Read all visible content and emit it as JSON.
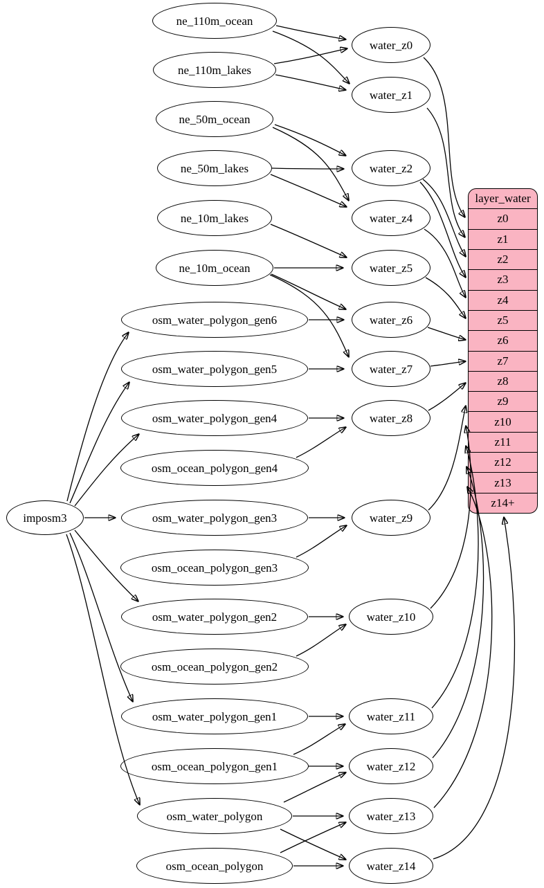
{
  "diagram": {
    "colors": {
      "table_fill": "#fab4c2",
      "node_fill": "#ffffff",
      "stroke": "#000000",
      "background": "#ffffff"
    },
    "table": {
      "title": "layer_water",
      "rows": [
        "z0",
        "z1",
        "z2",
        "z3",
        "z4",
        "z5",
        "z6",
        "z7",
        "z8",
        "z9",
        "z10",
        "z11",
        "z12",
        "z13",
        "z14+"
      ]
    },
    "nodes": [
      {
        "id": "ne_110m_ocean",
        "label": "ne_110m_ocean"
      },
      {
        "id": "ne_110m_lakes",
        "label": "ne_110m_lakes"
      },
      {
        "id": "ne_50m_ocean",
        "label": "ne_50m_ocean"
      },
      {
        "id": "ne_50m_lakes",
        "label": "ne_50m_lakes"
      },
      {
        "id": "ne_10m_lakes",
        "label": "ne_10m_lakes"
      },
      {
        "id": "ne_10m_ocean",
        "label": "ne_10m_ocean"
      },
      {
        "id": "osm_water_polygon_gen6",
        "label": "osm_water_polygon_gen6"
      },
      {
        "id": "osm_water_polygon_gen5",
        "label": "osm_water_polygon_gen5"
      },
      {
        "id": "osm_water_polygon_gen4",
        "label": "osm_water_polygon_gen4"
      },
      {
        "id": "osm_ocean_polygon_gen4",
        "label": "osm_ocean_polygon_gen4"
      },
      {
        "id": "imposm3",
        "label": "imposm3"
      },
      {
        "id": "osm_water_polygon_gen3",
        "label": "osm_water_polygon_gen3"
      },
      {
        "id": "osm_ocean_polygon_gen3",
        "label": "osm_ocean_polygon_gen3"
      },
      {
        "id": "osm_water_polygon_gen2",
        "label": "osm_water_polygon_gen2"
      },
      {
        "id": "osm_ocean_polygon_gen2",
        "label": "osm_ocean_polygon_gen2"
      },
      {
        "id": "osm_water_polygon_gen1",
        "label": "osm_water_polygon_gen1"
      },
      {
        "id": "osm_ocean_polygon_gen1",
        "label": "osm_ocean_polygon_gen1"
      },
      {
        "id": "osm_water_polygon",
        "label": "osm_water_polygon"
      },
      {
        "id": "osm_ocean_polygon",
        "label": "osm_ocean_polygon"
      },
      {
        "id": "water_z0",
        "label": "water_z0"
      },
      {
        "id": "water_z1",
        "label": "water_z1"
      },
      {
        "id": "water_z2",
        "label": "water_z2"
      },
      {
        "id": "water_z4",
        "label": "water_z4"
      },
      {
        "id": "water_z5",
        "label": "water_z5"
      },
      {
        "id": "water_z6",
        "label": "water_z6"
      },
      {
        "id": "water_z7",
        "label": "water_z7"
      },
      {
        "id": "water_z8",
        "label": "water_z8"
      },
      {
        "id": "water_z9",
        "label": "water_z9"
      },
      {
        "id": "water_z10",
        "label": "water_z10"
      },
      {
        "id": "water_z11",
        "label": "water_z11"
      },
      {
        "id": "water_z12",
        "label": "water_z12"
      },
      {
        "id": "water_z13",
        "label": "water_z13"
      },
      {
        "id": "water_z14",
        "label": "water_z14"
      }
    ],
    "edges": [
      {
        "from": "imposm3",
        "to": "osm_water_polygon_gen6"
      },
      {
        "from": "imposm3",
        "to": "osm_water_polygon_gen5"
      },
      {
        "from": "imposm3",
        "to": "osm_water_polygon_gen4"
      },
      {
        "from": "imposm3",
        "to": "osm_water_polygon_gen3"
      },
      {
        "from": "imposm3",
        "to": "osm_water_polygon_gen2"
      },
      {
        "from": "imposm3",
        "to": "osm_water_polygon_gen1"
      },
      {
        "from": "imposm3",
        "to": "osm_water_polygon"
      },
      {
        "from": "ne_110m_ocean",
        "to": "water_z0"
      },
      {
        "from": "ne_110m_ocean",
        "to": "water_z1"
      },
      {
        "from": "ne_110m_lakes",
        "to": "water_z0"
      },
      {
        "from": "ne_110m_lakes",
        "to": "water_z1"
      },
      {
        "from": "ne_50m_ocean",
        "to": "water_z2"
      },
      {
        "from": "ne_50m_ocean",
        "to": "water_z4"
      },
      {
        "from": "ne_50m_lakes",
        "to": "water_z2"
      },
      {
        "from": "ne_50m_lakes",
        "to": "water_z4"
      },
      {
        "from": "ne_10m_lakes",
        "to": "water_z5"
      },
      {
        "from": "ne_10m_ocean",
        "to": "water_z5"
      },
      {
        "from": "ne_10m_ocean",
        "to": "water_z6"
      },
      {
        "from": "ne_10m_ocean",
        "to": "water_z7"
      },
      {
        "from": "osm_water_polygon_gen6",
        "to": "water_z6"
      },
      {
        "from": "osm_water_polygon_gen5",
        "to": "water_z7"
      },
      {
        "from": "osm_water_polygon_gen4",
        "to": "water_z8"
      },
      {
        "from": "osm_ocean_polygon_gen4",
        "to": "water_z8"
      },
      {
        "from": "osm_water_polygon_gen3",
        "to": "water_z9"
      },
      {
        "from": "osm_ocean_polygon_gen3",
        "to": "water_z9"
      },
      {
        "from": "osm_water_polygon_gen2",
        "to": "water_z10"
      },
      {
        "from": "osm_ocean_polygon_gen2",
        "to": "water_z10"
      },
      {
        "from": "osm_water_polygon_gen1",
        "to": "water_z11"
      },
      {
        "from": "osm_ocean_polygon_gen1",
        "to": "water_z11"
      },
      {
        "from": "osm_ocean_polygon_gen1",
        "to": "water_z12"
      },
      {
        "from": "osm_water_polygon",
        "to": "water_z12"
      },
      {
        "from": "osm_water_polygon",
        "to": "water_z13"
      },
      {
        "from": "osm_water_polygon",
        "to": "water_z14"
      },
      {
        "from": "osm_ocean_polygon",
        "to": "water_z13"
      },
      {
        "from": "osm_ocean_polygon",
        "to": "water_z14"
      },
      {
        "from": "water_z0",
        "to": "z0"
      },
      {
        "from": "water_z1",
        "to": "z1"
      },
      {
        "from": "water_z2",
        "to": "z2"
      },
      {
        "from": "water_z2",
        "to": "z3"
      },
      {
        "from": "water_z4",
        "to": "z4"
      },
      {
        "from": "water_z5",
        "to": "z5"
      },
      {
        "from": "water_z6",
        "to": "z6"
      },
      {
        "from": "water_z7",
        "to": "z7"
      },
      {
        "from": "water_z8",
        "to": "z8"
      },
      {
        "from": "water_z9",
        "to": "z9"
      },
      {
        "from": "water_z10",
        "to": "z10"
      },
      {
        "from": "water_z11",
        "to": "z11"
      },
      {
        "from": "water_z12",
        "to": "z12"
      },
      {
        "from": "water_z13",
        "to": "z13"
      },
      {
        "from": "water_z14",
        "to": "z14+"
      }
    ]
  }
}
